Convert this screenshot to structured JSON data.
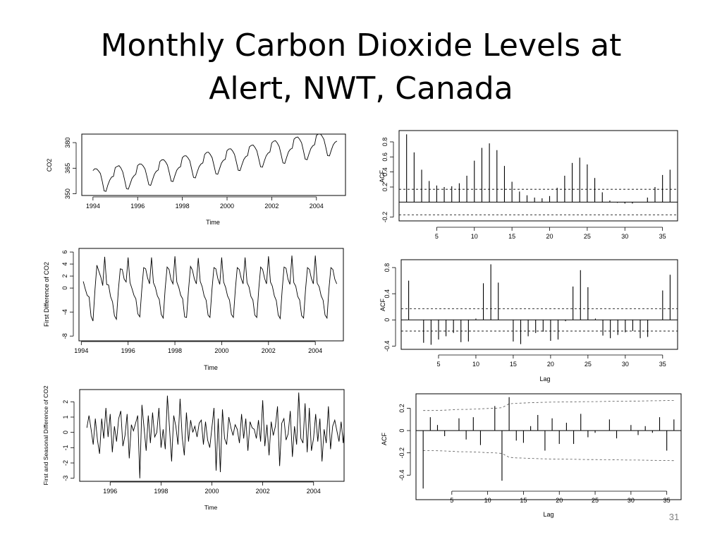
{
  "slide": {
    "title_line1": "Monthly Carbon Dioxide Levels at",
    "title_line2": "Alert, NWT, Canada",
    "page_number": "31"
  },
  "chart_data": [
    {
      "id": "ts-co2",
      "type": "line",
      "xlabel": "Time",
      "ylabel": "CO2",
      "xlim": [
        1993.5,
        2005.3
      ],
      "ylim": [
        349,
        385
      ],
      "xticks": [
        1994,
        1996,
        1998,
        2000,
        2002,
        2004
      ],
      "yticks": [
        350,
        365,
        380
      ],
      "x_start": 1994.0,
      "x_step": 0.0833333,
      "y": [
        363.6,
        364.7,
        364.6,
        363.4,
        361.9,
        357.2,
        351.7,
        351.4,
        355.2,
        358.0,
        359.8,
        360.2,
        365.4,
        366.0,
        366.5,
        365.1,
        362.8,
        358.2,
        353.0,
        352.7,
        355.9,
        359.0,
        360.5,
        361.5,
        366.6,
        367.5,
        367.4,
        366.2,
        364.4,
        360.1,
        355.3,
        354.9,
        358.3,
        361.5,
        363.2,
        363.9,
        369.0,
        369.9,
        370.0,
        368.7,
        366.8,
        362.4,
        357.4,
        357.2,
        360.7,
        363.8,
        365.2,
        365.9,
        371.2,
        372.2,
        372.3,
        371.1,
        369.3,
        364.5,
        359.6,
        359.3,
        362.9,
        365.9,
        367.4,
        368.1,
        373.1,
        374.2,
        374.4,
        373.1,
        371.1,
        366.6,
        361.7,
        361.4,
        364.8,
        368.0,
        369.6,
        370.2,
        375.3,
        376.3,
        376.4,
        375.1,
        373.1,
        368.7,
        363.8,
        363.6,
        367.0,
        370.1,
        371.7,
        372.4,
        377.5,
        378.4,
        378.6,
        377.2,
        375.2,
        370.7,
        365.8,
        365.6,
        369.1,
        372.2,
        373.8,
        374.5,
        379.8,
        380.8,
        381.1,
        379.8,
        377.7,
        373.2,
        368.1,
        367.8,
        371.3,
        374.6,
        376.1,
        376.7,
        382.1,
        383.0,
        383.3,
        381.9,
        379.9,
        375.3,
        370.3,
        370.0,
        373.4,
        376.5,
        378.1,
        378.8,
        384.2,
        385.0,
        385.2,
        383.9,
        381.9,
        377.4,
        372.4,
        372.2,
        375.6,
        378.7,
        380.2,
        380.9
      ]
    },
    {
      "id": "ts-diff1",
      "type": "line",
      "xlabel": "Time",
      "ylabel": "First Difference of CO2",
      "xlim": [
        1993.9,
        2005.2
      ],
      "ylim": [
        -8.8,
        6.6
      ],
      "xticks": [
        1994,
        1996,
        1998,
        2000,
        2002,
        2004
      ],
      "yticks": [
        -8,
        -4,
        0,
        2,
        4,
        6
      ],
      "x_start": 1994.083,
      "x_step": 0.0833333,
      "y": [
        1.1,
        -0.1,
        -1.2,
        -1.5,
        -4.7,
        -5.5,
        -0.3,
        3.8,
        2.8,
        1.8,
        0.4,
        5.2,
        0.6,
        0.5,
        -1.4,
        -2.3,
        -4.6,
        -5.2,
        -0.3,
        3.2,
        3.1,
        1.5,
        1.0,
        5.1,
        0.9,
        -0.1,
        -1.2,
        -1.8,
        -4.3,
        -4.8,
        -0.4,
        3.4,
        3.2,
        1.7,
        0.7,
        5.1,
        0.9,
        0.1,
        -1.3,
        -1.9,
        -4.4,
        -5.0,
        -0.2,
        3.5,
        3.1,
        1.4,
        0.7,
        5.3,
        1.0,
        0.1,
        -1.2,
        -1.8,
        -4.8,
        -4.9,
        -0.3,
        3.6,
        3.0,
        1.5,
        0.7,
        5.0,
        1.1,
        0.2,
        -1.3,
        -2.0,
        -4.5,
        -4.9,
        -0.3,
        3.4,
        3.2,
        1.6,
        0.6,
        5.1,
        1.0,
        0.1,
        -1.3,
        -2.0,
        -4.4,
        -4.9,
        -0.2,
        3.4,
        3.1,
        1.6,
        0.7,
        5.1,
        0.9,
        0.2,
        -1.4,
        -2.0,
        -4.5,
        -4.9,
        -0.2,
        3.5,
        3.1,
        1.6,
        0.7,
        5.3,
        1.0,
        0.3,
        -1.3,
        -2.1,
        -4.5,
        -5.1,
        -0.3,
        3.5,
        3.3,
        1.5,
        0.6,
        5.4,
        0.9,
        0.3,
        -1.4,
        -2.0,
        -4.6,
        -5.0,
        -0.3,
        3.4,
        3.1,
        1.6,
        0.7,
        5.4,
        0.8,
        0.2,
        -1.3,
        -2.0,
        -4.5,
        -5.0,
        -0.2,
        3.4,
        3.1,
        1.5,
        0.7
      ]
    },
    {
      "id": "ts-seasonal",
      "type": "line",
      "xlabel": "Time",
      "ylabel": "First and Seasonal Difference of CO2",
      "xlim": [
        1994.8,
        2005.2
      ],
      "ylim": [
        -3.2,
        2.8
      ],
      "xticks": [
        1996,
        1998,
        2000,
        2002,
        2004
      ],
      "yticks": [
        -3,
        -2,
        -1,
        0,
        1,
        2
      ],
      "x_start": 1995.083,
      "x_step": 0.0833333,
      "y": [
        0.3,
        1.1,
        0.2,
        -0.8,
        0.9,
        -0.5,
        -1.4,
        0.9,
        -0.4,
        1.6,
        -0.3,
        1.2,
        -1.3,
        0.4,
        -0.6,
        0.9,
        1.4,
        -0.9,
        -0.2,
        1.2,
        -1.7,
        0.5,
        0.1,
        0.6,
        1.1,
        -3.0,
        1.8,
        0.3,
        -1.2,
        1.1,
        -0.7,
        1.3,
        -0.3,
        0.0,
        1.6,
        -1.0,
        0.2,
        -1.1,
        2.4,
        0.3,
        -1.9,
        1.1,
        0.4,
        -0.8,
        2.2,
        -0.3,
        -1.5,
        1.3,
        -0.6,
        0.8,
        0.0,
        0.4,
        -0.3,
        0.6,
        0.8,
        -0.8,
        0.7,
        -0.5,
        -1.0,
        0.3,
        1.6,
        -2.5,
        0.9,
        -2.6,
        1.5,
        -0.4,
        -0.8,
        1.0,
        0.3,
        -0.2,
        0.5,
        0.2,
        -0.7,
        1.2,
        -0.4,
        0.9,
        -1.2,
        0.7,
        0.3,
        0.2,
        -0.4,
        0.8,
        -0.6,
        2.1,
        -0.9,
        0.5,
        -1.5,
        0.7,
        -0.2,
        0.4,
        1.7,
        -2.2,
        0.6,
        0.9,
        -0.5,
        -0.1,
        1.4,
        -1.6,
        0.4,
        -0.8,
        2.6,
        -0.4,
        -0.7,
        1.9,
        -1.3,
        1.6,
        -1.2,
        -0.4,
        1.2,
        -0.6,
        0.9,
        -1.9,
        0.2,
        -0.7,
        1.7,
        -1.1,
        0.4,
        0.8,
        0.1,
        -0.6,
        0.7,
        -0.7,
        1.2
      ]
    },
    {
      "id": "acf-co2",
      "type": "bar",
      "xlabel": "",
      "ylabel": "ACF",
      "xlim": [
        0,
        37
      ],
      "ylim": [
        -0.25,
        0.95
      ],
      "xticks": [
        5,
        10,
        15,
        20,
        25,
        30,
        35
      ],
      "yticks": [
        -0.2,
        0.2,
        0.4,
        0.6,
        0.8
      ],
      "conf_band": [
        0.17,
        -0.17
      ],
      "lags": [
        1,
        2,
        3,
        4,
        5,
        6,
        7,
        8,
        9,
        10,
        11,
        12,
        13,
        14,
        15,
        16,
        17,
        18,
        19,
        20,
        21,
        22,
        23,
        24,
        25,
        26,
        27,
        28,
        29,
        30,
        31,
        32,
        33,
        34,
        35,
        36
      ],
      "values": [
        0.9,
        0.66,
        0.43,
        0.28,
        0.22,
        0.2,
        0.21,
        0.25,
        0.35,
        0.55,
        0.72,
        0.78,
        0.69,
        0.48,
        0.27,
        0.14,
        0.09,
        0.06,
        0.05,
        0.08,
        0.19,
        0.35,
        0.52,
        0.59,
        0.5,
        0.32,
        0.13,
        0.02,
        -0.01,
        -0.02,
        -0.02,
        0.0,
        0.06,
        0.2,
        0.36,
        0.43
      ]
    },
    {
      "id": "acf-diff1",
      "type": "bar",
      "xlabel": "Lag",
      "ylabel": "ACF",
      "xlim": [
        0,
        37
      ],
      "ylim": [
        -0.45,
        0.92
      ],
      "xticks": [
        5,
        10,
        15,
        20,
        25,
        30,
        35
      ],
      "yticks": [
        -0.4,
        0.0,
        0.4,
        0.8
      ],
      "conf_band": [
        0.17,
        -0.17
      ],
      "lags": [
        1,
        2,
        3,
        4,
        5,
        6,
        7,
        8,
        9,
        10,
        11,
        12,
        13,
        14,
        15,
        16,
        17,
        18,
        19,
        20,
        21,
        22,
        23,
        24,
        25,
        26,
        27,
        28,
        29,
        30,
        31,
        32,
        33,
        34,
        35,
        36
      ],
      "values": [
        0.6,
        0.0,
        -0.35,
        -0.38,
        -0.3,
        -0.25,
        -0.2,
        -0.34,
        -0.33,
        0.02,
        0.56,
        0.85,
        0.57,
        0.0,
        -0.33,
        -0.37,
        -0.25,
        -0.2,
        -0.18,
        -0.32,
        -0.3,
        -0.02,
        0.51,
        0.76,
        0.5,
        0.02,
        -0.24,
        -0.28,
        -0.23,
        -0.19,
        -0.17,
        -0.28,
        -0.26,
        0.0,
        0.45,
        0.69
      ]
    },
    {
      "id": "acf-seasonal",
      "type": "bar",
      "xlabel": "Lag",
      "ylabel": "ACF",
      "xlim": [
        0,
        37
      ],
      "ylim": [
        -0.62,
        0.33
      ],
      "xticks": [
        5,
        10,
        15,
        20,
        25,
        30,
        35
      ],
      "yticks": [
        -0.4,
        -0.2,
        0.0,
        0.2
      ],
      "conf_upper": [
        0.18,
        0.18,
        0.181,
        0.183,
        0.186,
        0.19,
        0.19,
        0.192,
        0.195,
        0.198,
        0.2,
        0.205,
        0.24,
        0.245,
        0.247,
        0.25,
        0.252,
        0.254,
        0.255,
        0.256,
        0.257,
        0.258,
        0.259,
        0.26,
        0.26,
        0.261,
        0.262,
        0.263,
        0.264,
        0.265,
        0.265,
        0.266,
        0.267,
        0.268,
        0.269,
        0.27
      ],
      "conf_lower": [
        -0.18,
        -0.18,
        -0.181,
        -0.183,
        -0.186,
        -0.19,
        -0.19,
        -0.192,
        -0.195,
        -0.198,
        -0.2,
        -0.205,
        -0.24,
        -0.245,
        -0.247,
        -0.25,
        -0.252,
        -0.254,
        -0.255,
        -0.256,
        -0.257,
        -0.258,
        -0.259,
        -0.26,
        -0.26,
        -0.261,
        -0.262,
        -0.263,
        -0.264,
        -0.265,
        -0.265,
        -0.266,
        -0.267,
        -0.268,
        -0.269,
        -0.27
      ],
      "lags": [
        1,
        2,
        3,
        4,
        5,
        6,
        7,
        8,
        9,
        10,
        11,
        12,
        13,
        14,
        15,
        16,
        17,
        18,
        19,
        20,
        21,
        22,
        23,
        24,
        25,
        26,
        27,
        28,
        29,
        30,
        31,
        32,
        33,
        34,
        35,
        36
      ],
      "values": [
        -0.52,
        0.12,
        0.05,
        -0.05,
        0.0,
        0.11,
        -0.08,
        0.12,
        -0.13,
        0.0,
        0.22,
        -0.45,
        0.3,
        -0.09,
        -0.11,
        0.04,
        0.14,
        -0.18,
        0.11,
        -0.12,
        0.07,
        -0.12,
        0.15,
        -0.06,
        -0.02,
        0.0,
        0.1,
        -0.07,
        0.0,
        0.05,
        -0.04,
        0.04,
        -0.02,
        0.12,
        -0.18,
        0.1
      ]
    }
  ]
}
